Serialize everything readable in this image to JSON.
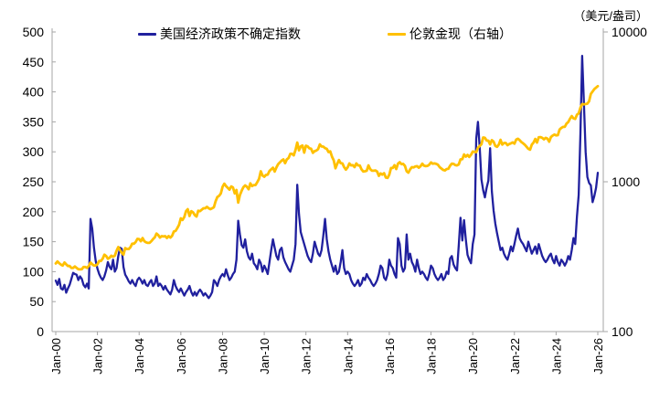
{
  "colors": {
    "epu_line": "#20209E",
    "gold_line": "#FFC000",
    "axis": "#A6A6A6",
    "text": "#000000"
  },
  "chart_data": {
    "type": "line",
    "title": "",
    "legend_position": "top",
    "grid": false,
    "x_range": [
      2000,
      2026
    ],
    "x_tick_labels": [
      "Jan-00",
      "Jan-02",
      "Jan-04",
      "Jan-06",
      "Jan-08",
      "Jan-10",
      "Jan-12",
      "Jan-14",
      "Jan-16",
      "Jan-18",
      "Jan-20",
      "Jan-22",
      "Jan-24",
      "Jan-26"
    ],
    "left_axis": {
      "min": 0,
      "max": 500,
      "ticks": [
        0,
        50,
        100,
        150,
        200,
        250,
        300,
        350,
        400,
        450,
        500
      ]
    },
    "right_axis": {
      "scale": "log",
      "min": 100,
      "max": 10000,
      "ticks": [
        100,
        1000,
        10000
      ],
      "unit": "（美元/盎司）"
    },
    "series": [
      {
        "name": "美国经济政策不确定指数",
        "axis": "left",
        "color": "#20209E",
        "start_year": 2000,
        "interval_months": 1,
        "values": [
          85,
          78,
          88,
          72,
          70,
          78,
          65,
          72,
          78,
          88,
          98,
          96,
          95,
          86,
          92,
          88,
          78,
          74,
          80,
          72,
          188,
          172,
          140,
          118,
          105,
          96,
          90,
          86,
          92,
          102,
          116,
          108,
          104,
          120,
          100,
          106,
          126,
          140,
          138,
          108,
          95,
          90,
          84,
          80,
          86,
          80,
          76,
          86,
          90,
          86,
          80,
          86,
          78,
          76,
          82,
          86,
          76,
          80,
          92,
          76,
          80,
          76,
          70,
          76,
          70,
          66,
          62,
          70,
          86,
          76,
          70,
          66,
          72,
          66,
          60,
          66,
          70,
          76,
          66,
          60,
          66,
          60,
          66,
          70,
          66,
          60,
          64,
          60,
          56,
          60,
          66,
          86,
          82,
          76,
          86,
          92,
          96,
          92,
          104,
          94,
          86,
          90,
          96,
          100,
          120,
          185,
          162,
          144,
          140,
          154,
          134,
          124,
          120,
          130,
          114,
          110,
          104,
          120,
          114,
          100,
          110,
          104,
          96,
          116,
          136,
          154,
          140,
          126,
          120,
          136,
          140,
          124,
          116,
          110,
          104,
          100,
          110,
          120,
          146,
          245,
          196,
          166,
          156,
          146,
          136,
          126,
          120,
          116,
          130,
          150,
          140,
          130,
          126,
          136,
          160,
          188,
          154,
          134,
          120,
          110,
          100,
          110,
          96,
          100,
          116,
          136,
          106,
          96,
          100,
          96,
          86,
          80,
          76,
          80,
          86,
          76,
          80,
          90,
          86,
          96,
          90,
          86,
          80,
          76,
          80,
          86,
          96,
          110,
          106,
          90,
          86,
          96,
          120,
          110,
          106,
          96,
          90,
          156,
          146,
          110,
          100,
          106,
          162,
          120,
          130,
          116,
          110,
          100,
          120,
          106,
          96,
          100,
          96,
          90,
          86,
          96,
          110,
          106,
          96,
          90,
          86,
          90,
          96,
          86,
          90,
          100,
          96,
          122,
          126,
          112,
          106,
          102,
          144,
          190,
          152,
          186,
          154,
          128,
          120,
          114,
          146,
          162,
          322,
          350,
          308,
          254,
          236,
          224,
          240,
          252,
          306,
          234,
          202,
          180,
          164,
          150,
          136,
          140,
          130,
          124,
          120,
          130,
          142,
          134,
          146,
          160,
          172,
          156,
          150,
          146,
          140,
          134,
          150,
          140,
          130,
          136,
          142,
          130,
          146,
          136,
          126,
          120,
          116,
          120,
          126,
          130,
          120,
          114,
          126,
          116,
          110,
          120,
          116,
          110,
          116,
          126,
          120,
          136,
          156,
          146,
          192,
          228,
          330,
          460,
          382,
          300,
          258,
          248,
          244,
          216,
          226,
          240,
          265
        ]
      },
      {
        "name": "伦敦金现（右轴）",
        "axis": "right",
        "color": "#FFC000",
        "start_year": 2000,
        "interval_months": 1,
        "values": [
          285,
          294,
          286,
          280,
          276,
          289,
          281,
          274,
          274,
          266,
          266,
          272,
          266,
          261,
          260,
          261,
          270,
          270,
          266,
          274,
          289,
          281,
          276,
          276,
          281,
          296,
          296,
          306,
          326,
          320,
          306,
          311,
          321,
          316,
          321,
          346,
          367,
          350,
          336,
          326,
          361,
          356,
          356,
          366,
          386,
          386,
          396,
          416,
          414,
          401,
          421,
          401,
          394,
          391,
          391,
          401,
          414,
          425,
          451,
          441,
          424,
          434,
          431,
          434,
          421,
          434,
          424,
          436,
          466,
          470,
          491,
          516,
          570,
          556,
          581,
          636,
          656,
          591,
          636,
          626,
          599,
          586,
          641,
          636,
          651,
          666,
          666,
          681,
          666,
          656,
          666,
          676,
          741,
          791,
          806,
          836,
          926,
          971,
          936,
          911,
          886,
          931,
          916,
          836,
          881,
          726,
          816,
          871,
          921,
          946,
          926,
          891,
          976,
          936,
          951,
          951,
          996,
          1046,
          1176,
          1101,
          1081,
          1111,
          1116,
          1181,
          1211,
          1241,
          1171,
          1246,
          1311,
          1346,
          1386,
          1411,
          1331,
          1411,
          1441,
          1536,
          1536,
          1501,
          1631,
          1826,
          1621,
          1721,
          1746,
          1566,
          1741,
          1721,
          1671,
          1661,
          1561,
          1601,
          1616,
          1651,
          1776,
          1721,
          1716,
          1676,
          1661,
          1581,
          1596,
          1471,
          1391,
          1231,
          1316,
          1396,
          1331,
          1326,
          1251,
          1206,
          1246,
          1326,
          1286,
          1291,
          1251,
          1326,
          1286,
          1286,
          1211,
          1171,
          1176,
          1186,
          1286,
          1216,
          1186,
          1186,
          1191,
          1171,
          1096,
          1136,
          1116,
          1141,
          1066,
          1061,
          1116,
          1236,
          1236,
          1291,
          1216,
          1321,
          1351,
          1311,
          1316,
          1276,
          1176,
          1151,
          1211,
          1251,
          1246,
          1266,
          1271,
          1241,
          1271,
          1321,
          1281,
          1271,
          1276,
          1301,
          1346,
          1321,
          1326,
          1316,
          1301,
          1251,
          1226,
          1201,
          1191,
          1216,
          1221,
          1281,
          1321,
          1316,
          1291,
          1286,
          1306,
          1411,
          1416,
          1521,
          1471,
          1511,
          1466,
          1516,
          1591,
          1586,
          1576,
          1686,
          1731,
          1781,
          1976,
          1966,
          1886,
          1881,
          1776,
          1896,
          1851,
          1736,
          1711,
          1771,
          1906,
          1771,
          1816,
          1816,
          1756,
          1786,
          1806,
          1831,
          1796,
          1911,
          1936,
          1896,
          1841,
          1806,
          1766,
          1711,
          1661,
          1636,
          1771,
          1826,
          1931,
          1826,
          1981,
          1986,
          1966,
          1921,
          1966,
          1941,
          1851,
          1986,
          2036,
          2066,
          2041,
          2046,
          2231,
          2286,
          2326,
          2326,
          2446,
          2506,
          2636,
          2746,
          2651,
          2626,
          2801,
          2861,
          3121,
          3301,
          3291,
          3301,
          3321,
          3451,
          3861,
          4001,
          4151,
          4251,
          4350
        ]
      }
    ]
  }
}
